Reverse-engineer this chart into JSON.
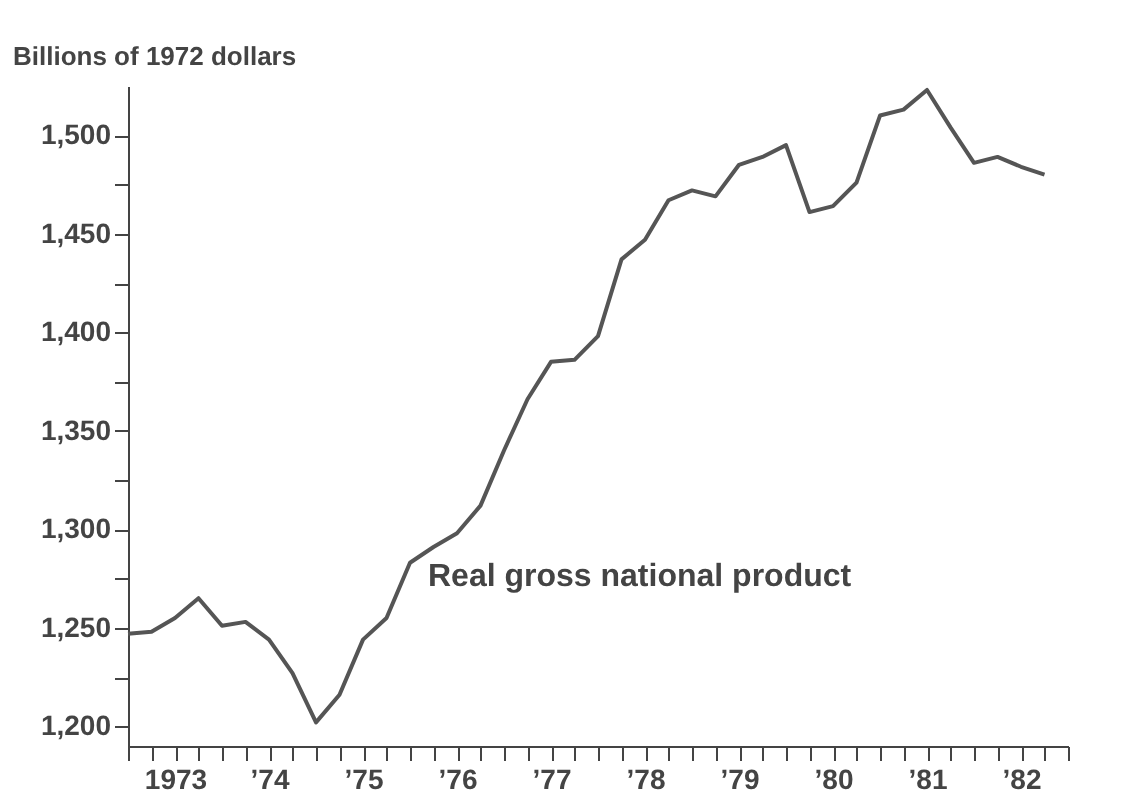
{
  "chart_data": {
    "type": "line",
    "ylabel": "Billions of 1972 dollars",
    "annotations": [
      "Real gross national product"
    ],
    "categories": [
      null,
      null,
      "1973",
      null,
      null,
      null,
      "’74",
      null,
      null,
      null,
      "’75",
      null,
      null,
      null,
      "’76",
      null,
      null,
      null,
      "’77",
      null,
      null,
      null,
      "’78",
      null,
      null,
      null,
      "’79",
      null,
      null,
      null,
      "’80",
      null,
      null,
      null,
      "’81",
      null,
      null,
      null,
      "’82",
      null
    ],
    "series": [
      {
        "color": "#555555",
        "values": [
          1247,
          1248,
          1255,
          1265,
          1251,
          1253,
          1244,
          1227,
          1202,
          1216,
          1244,
          1255,
          1283,
          1291,
          1298,
          1312,
          1340,
          1366,
          1385,
          1386,
          1398,
          1437,
          1447,
          1467,
          1472,
          1469,
          1485,
          1489,
          1495,
          1461,
          1464,
          1476,
          1510,
          1513,
          1523,
          1504,
          1486,
          1489,
          1484,
          1480
        ]
      }
    ],
    "ylim": [
      1190,
      1525
    ],
    "yticks": [
      {
        "value": 1200,
        "label": "1,200"
      },
      {
        "value": 1225,
        "label": null
      },
      {
        "value": 1250,
        "label": "1,250"
      },
      {
        "value": 1275,
        "label": null
      },
      {
        "value": 1300,
        "label": "1,300"
      },
      {
        "value": 1325,
        "label": null
      },
      {
        "value": 1350,
        "label": "1,350"
      },
      {
        "value": 1375,
        "label": null
      },
      {
        "value": 1400,
        "label": "1,400"
      },
      {
        "value": 1425,
        "label": null
      },
      {
        "value": 1450,
        "label": "1,450"
      },
      {
        "value": 1475,
        "label": null
      },
      {
        "value": 1500,
        "label": "1,500"
      }
    ],
    "grid": false
  }
}
